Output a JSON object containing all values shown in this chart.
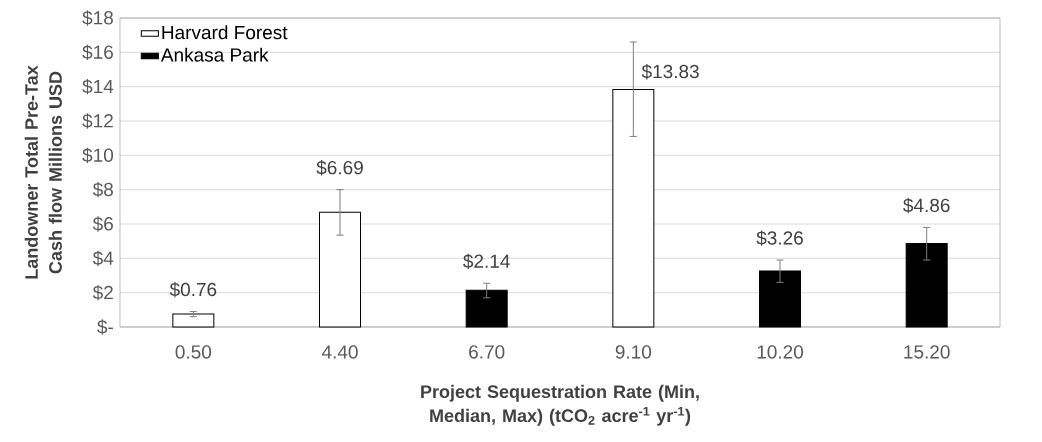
{
  "chart_data": {
    "type": "bar",
    "xlabel": "Project Sequestration Rate (Min, Median, Max) (tCO$_{2}$ acre$^{-1}$ yr$^{-1}$)",
    "ylabel": "Landowner Total Pre-Tax Cash flow Millions USD",
    "categories": [
      "0.50",
      "4.40",
      "6.70",
      "9.10",
      "10.20",
      "15.20"
    ],
    "series": [
      {
        "name": "Harvard Forest",
        "color": "#ffffff",
        "values": [
          0.76,
          6.69,
          null,
          13.83,
          null,
          null
        ],
        "errors": [
          [
            0.6,
            0.9
          ],
          [
            5.35,
            8.0
          ],
          null,
          [
            11.1,
            16.6
          ],
          null,
          null
        ],
        "value_labels": [
          "$0.76",
          "$6.69",
          null,
          "$13.83",
          null,
          null
        ]
      },
      {
        "name": "Ankasa Park",
        "color": "#000000",
        "values": [
          null,
          null,
          2.14,
          null,
          3.26,
          4.86
        ],
        "errors": [
          null,
          null,
          [
            1.7,
            2.55
          ],
          null,
          [
            2.6,
            3.9
          ],
          [
            3.9,
            5.8
          ]
        ],
        "value_labels": [
          null,
          null,
          "$2.14",
          null,
          "$3.26",
          "$4.86"
        ]
      }
    ],
    "ylim": [
      0,
      18
    ],
    "yticks": [
      {
        "value": 0,
        "label": "$-"
      },
      {
        "value": 2,
        "label": "$2"
      },
      {
        "value": 4,
        "label": "$4"
      },
      {
        "value": 6,
        "label": "$6"
      },
      {
        "value": 8,
        "label": "$8"
      },
      {
        "value": 10,
        "label": "$10"
      },
      {
        "value": 12,
        "label": "$12"
      },
      {
        "value": 14,
        "label": "$14"
      },
      {
        "value": 16,
        "label": "$16"
      },
      {
        "value": 18,
        "label": "$18"
      }
    ],
    "grid": "y",
    "legend": "top left"
  }
}
